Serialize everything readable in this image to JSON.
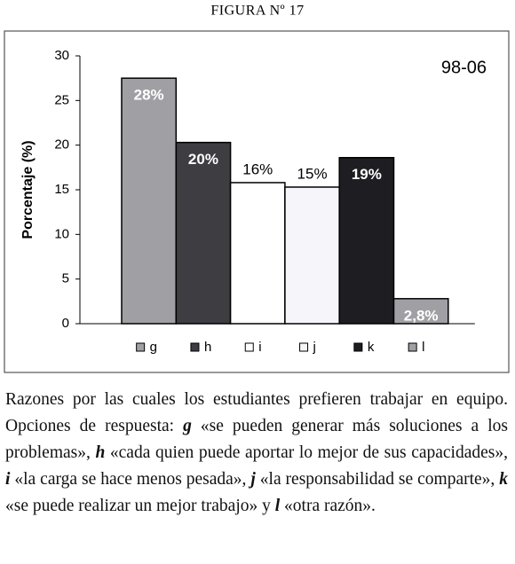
{
  "figure_label": "FIGURA Nº 17",
  "chart_data": {
    "type": "bar",
    "annotation": "98-06",
    "y_label": "Porcentaje (%)",
    "categories": [
      "g",
      "h",
      "i",
      "j",
      "k",
      "l"
    ],
    "values": [
      27.5,
      20.3,
      15.8,
      15.3,
      18.6,
      2.8
    ],
    "value_labels": [
      "28%",
      "20%",
      "16%",
      "15%",
      "19%",
      "2,8%"
    ],
    "colors": [
      "#a0a0a4",
      "#3d3d42",
      "#ffffff",
      "#f6f6fa",
      "#1e1e22",
      "#a0a0a4"
    ],
    "ylim": [
      0,
      30
    ],
    "yticks": [
      0,
      5,
      10,
      15,
      20,
      25,
      30
    ],
    "grid": false
  },
  "caption": [
    {
      "text": "Razones por las cuales los estudiantes prefieren trabajar en equipo. Opciones de respuesta: "
    },
    {
      "text": "g",
      "style": "italic"
    },
    {
      "text": " «se pueden generar más soluciones a los problemas», "
    },
    {
      "text": "h",
      "style": "italic"
    },
    {
      "text": " «cada quien puede aportar lo mejor de sus capacidades», "
    },
    {
      "text": "i",
      "style": "italic"
    },
    {
      "text": " «la carga se hace menos pesada», "
    },
    {
      "text": "j",
      "style": "italic"
    },
    {
      "text": " «la responsabilidad se comparte», "
    },
    {
      "text": "k",
      "style": "italic"
    },
    {
      "text": " «se puede realizar un mejor trabajo» y "
    },
    {
      "text": "l",
      "style": "italic"
    },
    {
      "text": " «otra razón»."
    }
  ]
}
